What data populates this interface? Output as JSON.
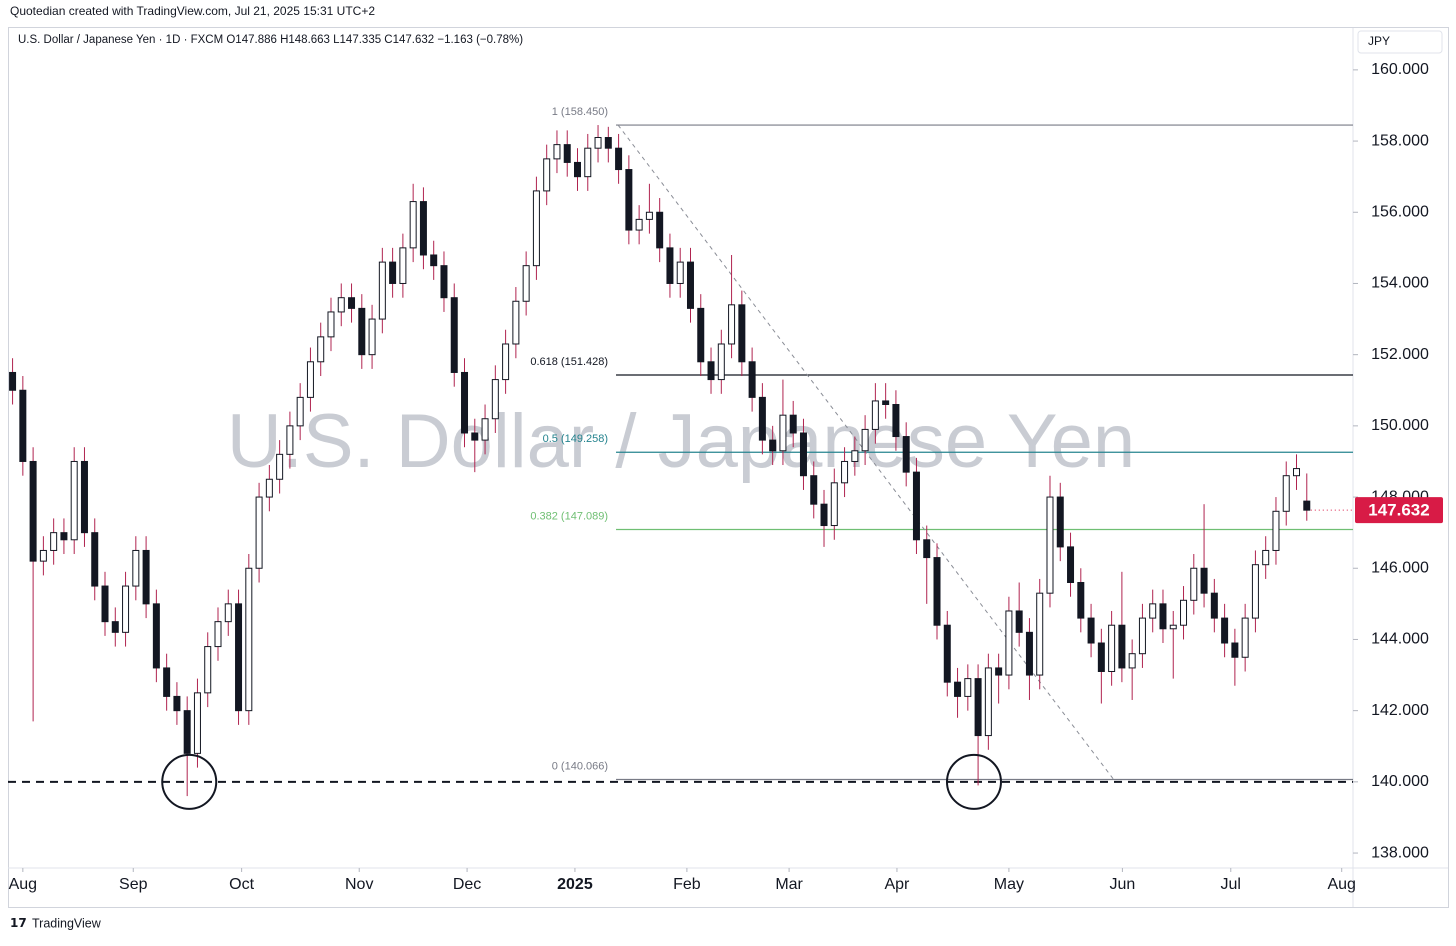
{
  "header": "Quotedian created with TradingView.com, Jul 21, 2025 15:31 UTC+2",
  "footer": "TradingView",
  "chart_data": {
    "type": "candlestick",
    "legend": "U.S. Dollar / Japanese Yen · 1D · FXCM  O147.886  H148.663  L147.335  C147.632  −1.163 (−0.78%)",
    "watermark": "U.S. Dollar / Japanese Yen",
    "currency": "JPY",
    "x": [
      0,
      2,
      4,
      6,
      8,
      10,
      12,
      14,
      16,
      18,
      20,
      22,
      24,
      26,
      28,
      30,
      32,
      34,
      36,
      38,
      40,
      42,
      44,
      46,
      48,
      50,
      52,
      54,
      56,
      58,
      60,
      62,
      64,
      66,
      68,
      70,
      72,
      74,
      76,
      78,
      80,
      82,
      84,
      86,
      88,
      90,
      92,
      94,
      96,
      98,
      100,
      102,
      104,
      106,
      108,
      110,
      112,
      114,
      116,
      118,
      120,
      122,
      124,
      126,
      128,
      130,
      132,
      134,
      136,
      138,
      140,
      142,
      144,
      146,
      148,
      150,
      152,
      154,
      156,
      158,
      160,
      162,
      164,
      166,
      168,
      170,
      172,
      174,
      176,
      178,
      180,
      182,
      184,
      186,
      188,
      190,
      192,
      194,
      196,
      198,
      200,
      202,
      204,
      206,
      208,
      210,
      212,
      214,
      216,
      218,
      220,
      222,
      224,
      226,
      228,
      230,
      232,
      234,
      236,
      238,
      240,
      242,
      244,
      246,
      248,
      250,
      252
    ],
    "open": [
      151.5,
      151.0,
      149.0,
      146.2,
      146.5,
      147.0,
      146.8,
      149.0,
      147.0,
      145.5,
      144.5,
      144.2,
      145.5,
      146.5,
      145.0,
      143.2,
      142.4,
      142.0,
      140.8,
      142.5,
      143.8,
      144.5,
      145.0,
      142.0,
      146.0,
      148.0,
      148.5,
      149.2,
      150.0,
      150.8,
      151.8,
      152.5,
      153.2,
      153.6,
      153.3,
      152.0,
      153.0,
      154.6,
      154.0,
      155.0,
      156.3,
      154.8,
      154.5,
      153.6,
      151.5,
      149.8,
      149.6,
      150.2,
      151.3,
      152.3,
      153.5,
      154.5,
      156.6,
      157.5,
      157.9,
      157.4,
      157.0,
      157.8,
      158.1,
      157.8,
      157.2,
      155.5,
      155.8,
      156.0,
      155.0,
      154.0,
      154.6,
      153.3,
      151.8,
      151.3,
      152.3,
      153.4,
      151.8,
      150.8,
      149.6,
      149.3,
      150.3,
      149.8,
      148.6,
      147.8,
      147.2,
      148.4,
      149.0,
      149.3,
      149.9,
      150.7,
      150.6,
      149.7,
      148.7,
      146.8,
      146.3,
      144.4,
      142.8,
      142.4,
      142.9,
      141.3,
      143.2,
      143.0,
      144.8,
      144.2,
      143.0,
      145.3,
      148.0,
      146.6,
      145.6,
      144.6,
      143.9,
      143.1,
      144.4,
      143.2,
      143.6,
      144.6,
      145.0,
      144.3,
      144.4,
      145.1,
      146.0,
      145.3,
      144.6,
      143.9,
      143.5,
      144.6,
      146.1,
      146.5,
      147.6,
      148.6,
      147.886
    ],
    "high": [
      151.9,
      151.4,
      149.4,
      146.9,
      147.4,
      147.4,
      149.4,
      149.4,
      147.4,
      145.9,
      144.9,
      145.9,
      146.9,
      146.9,
      145.4,
      143.6,
      142.8,
      142.4,
      142.9,
      144.2,
      144.9,
      145.4,
      145.4,
      146.4,
      148.4,
      148.9,
      149.6,
      150.4,
      151.2,
      152.2,
      152.9,
      153.6,
      154.0,
      154.0,
      153.7,
      153.4,
      155.0,
      155.0,
      155.4,
      156.8,
      156.7,
      155.2,
      154.9,
      154.0,
      151.9,
      150.2,
      150.6,
      151.7,
      152.7,
      153.9,
      154.9,
      157.0,
      157.9,
      158.3,
      158.3,
      157.8,
      158.2,
      158.45,
      158.4,
      158.2,
      157.6,
      156.2,
      156.8,
      156.4,
      155.4,
      155.0,
      155.0,
      153.7,
      152.2,
      152.7,
      154.8,
      153.8,
      152.2,
      151.2,
      150.0,
      151.3,
      150.7,
      150.2,
      149.0,
      148.2,
      148.8,
      149.4,
      149.7,
      150.3,
      151.2,
      151.2,
      151.0,
      150.1,
      149.1,
      147.2,
      146.7,
      144.8,
      143.2,
      143.3,
      143.3,
      143.6,
      143.6,
      145.2,
      145.6,
      144.6,
      145.7,
      148.6,
      148.4,
      147.0,
      146.0,
      145.0,
      144.3,
      144.8,
      145.9,
      144.0,
      145.0,
      145.4,
      145.4,
      144.8,
      145.5,
      146.4,
      147.8,
      145.7,
      145.0,
      144.3,
      145.0,
      146.5,
      146.9,
      148.0,
      149.0,
      149.2,
      148.663
    ],
    "low": [
      150.6,
      148.6,
      141.7,
      145.8,
      146.1,
      146.4,
      146.4,
      146.6,
      145.1,
      144.1,
      143.8,
      143.8,
      145.1,
      144.6,
      142.8,
      142.0,
      141.6,
      139.6,
      140.4,
      142.1,
      143.4,
      144.1,
      141.6,
      141.6,
      145.6,
      147.6,
      148.1,
      148.8,
      149.6,
      150.4,
      151.4,
      152.1,
      152.8,
      152.9,
      151.6,
      151.6,
      152.6,
      153.6,
      153.6,
      154.6,
      154.4,
      154.1,
      153.2,
      151.1,
      149.4,
      148.7,
      149.2,
      149.8,
      150.9,
      151.9,
      153.1,
      154.1,
      156.2,
      157.1,
      157.0,
      156.6,
      156.6,
      157.4,
      157.4,
      156.8,
      155.1,
      155.1,
      155.4,
      154.6,
      153.6,
      153.6,
      152.9,
      151.4,
      150.9,
      150.9,
      151.9,
      151.4,
      150.4,
      149.2,
      148.9,
      148.9,
      149.4,
      148.2,
      147.4,
      146.6,
      146.8,
      148.0,
      148.6,
      148.9,
      149.5,
      150.2,
      149.3,
      148.3,
      146.4,
      145.0,
      144.0,
      142.4,
      141.8,
      142.0,
      139.9,
      140.9,
      142.2,
      142.6,
      143.8,
      142.3,
      142.6,
      144.9,
      146.2,
      145.2,
      144.2,
      143.5,
      142.2,
      142.7,
      142.8,
      142.3,
      143.2,
      144.2,
      143.9,
      142.9,
      144.0,
      144.7,
      144.9,
      144.2,
      143.5,
      142.7,
      143.1,
      144.2,
      145.7,
      146.1,
      147.2,
      148.2,
      147.335
    ],
    "close": [
      151.0,
      149.0,
      146.2,
      146.5,
      147.0,
      146.8,
      149.0,
      147.0,
      145.5,
      144.5,
      144.2,
      145.5,
      146.5,
      145.0,
      143.2,
      142.4,
      142.0,
      140.8,
      142.5,
      143.8,
      144.5,
      145.0,
      142.0,
      146.0,
      148.0,
      148.5,
      149.2,
      150.0,
      150.8,
      151.8,
      152.5,
      153.2,
      153.6,
      153.3,
      152.0,
      153.0,
      154.6,
      154.0,
      155.0,
      156.3,
      154.8,
      154.5,
      153.6,
      151.5,
      149.8,
      149.6,
      150.2,
      151.3,
      152.3,
      153.5,
      154.5,
      156.6,
      157.5,
      157.9,
      157.4,
      157.0,
      157.8,
      158.1,
      157.8,
      157.2,
      155.5,
      155.8,
      156.0,
      155.0,
      154.0,
      154.6,
      153.3,
      151.8,
      151.3,
      152.3,
      153.4,
      151.8,
      150.8,
      149.6,
      149.3,
      150.3,
      149.8,
      148.6,
      147.8,
      147.2,
      148.4,
      149.0,
      149.3,
      149.9,
      150.7,
      150.6,
      149.7,
      148.7,
      146.8,
      146.3,
      144.4,
      142.8,
      142.4,
      142.9,
      141.3,
      143.2,
      143.0,
      144.8,
      144.2,
      143.0,
      145.3,
      148.0,
      146.6,
      145.6,
      144.6,
      143.9,
      143.1,
      144.4,
      143.2,
      143.6,
      144.6,
      145.0,
      144.3,
      144.4,
      145.1,
      146.0,
      145.3,
      144.6,
      143.9,
      143.5,
      144.6,
      146.1,
      146.5,
      147.6,
      148.6,
      148.8,
      147.632
    ],
    "up_color": "#ffffff",
    "down_color": "#131722",
    "border_color": "#131722",
    "wick_color": "#b0234f",
    "last_price_color": "#d81b46",
    "xlim": [
      -0.5,
      261
    ],
    "xticks": [
      {
        "value": 2,
        "label": "Aug"
      },
      {
        "value": 23.5,
        "label": "Sep"
      },
      {
        "value": 44.6,
        "label": "Oct"
      },
      {
        "value": 67.5,
        "label": "Nov"
      },
      {
        "value": 88.5,
        "label": "Dec"
      },
      {
        "value": 109.5,
        "label": "2025"
      },
      {
        "value": 131.3,
        "label": "Feb"
      },
      {
        "value": 151.2,
        "label": "Mar"
      },
      {
        "value": 172.2,
        "label": "Apr"
      },
      {
        "value": 194,
        "label": "May"
      },
      {
        "value": 216.1,
        "label": "Jun"
      },
      {
        "value": 237.2,
        "label": "Jul"
      },
      {
        "value": 258.8,
        "label": "Aug"
      }
    ],
    "ylim": [
      137.58,
      161.12
    ],
    "yticks": [
      {
        "value": 138,
        "label": "138.000"
      },
      {
        "value": 140,
        "label": "140.000"
      },
      {
        "value": 142,
        "label": "142.000"
      },
      {
        "value": 144,
        "label": "144.000"
      },
      {
        "value": 146,
        "label": "146.000"
      },
      {
        "value": 148,
        "label": "148.000"
      },
      {
        "value": 150,
        "label": "150.000"
      },
      {
        "value": 152,
        "label": "152.000"
      },
      {
        "value": 154,
        "label": "154.000"
      },
      {
        "value": 156,
        "label": "156.000"
      },
      {
        "value": 158,
        "label": "158.000"
      },
      {
        "value": 160,
        "label": "160.000"
      }
    ],
    "fib_x_start": 117.5,
    "fib_levels": [
      {
        "value": 158.45,
        "label": "1 (158.450)",
        "color": "#787b86"
      },
      {
        "value": 151.428,
        "label": "0.618 (151.428)",
        "color": "#131722"
      },
      {
        "value": 149.258,
        "label": "0.5 (149.258)",
        "color": "#26848f"
      },
      {
        "value": 147.089,
        "label": "0.382 (147.089)",
        "color": "#6fbf73"
      },
      {
        "value": 140.066,
        "label": "0 (140.066)",
        "color": "#787b86"
      }
    ],
    "support": 140.0,
    "trendline": {
      "x": [
        117.9,
        214.4
      ],
      "y": [
        158.45,
        140.066
      ]
    },
    "highlights": {
      "x": [
        34.4,
        187.2
      ],
      "y": [
        140.0,
        140.0
      ]
    }
  }
}
